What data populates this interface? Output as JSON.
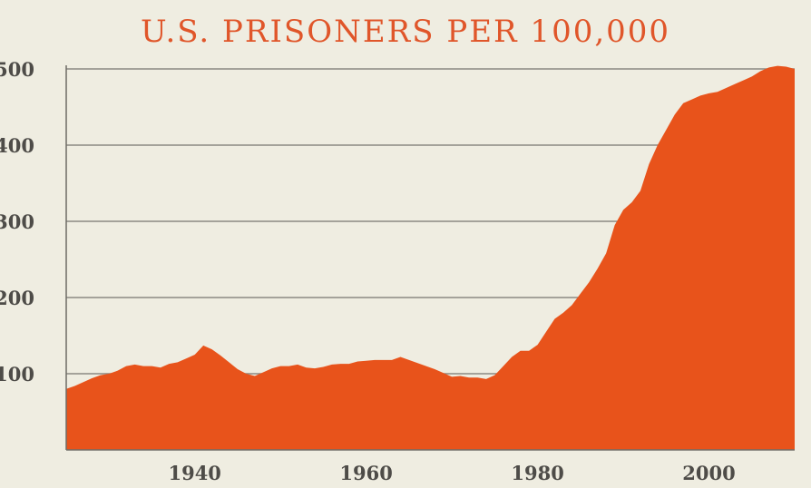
{
  "colors": {
    "background": "#efede1",
    "area_fill": "#e8531b",
    "title": "#e0562a",
    "gridline": "#8c8a83",
    "axis": "#6f6d66",
    "tick_label": "#4e4c48"
  },
  "chart_data": {
    "type": "area",
    "title": "U.S. PRISONERS PER 100,000",
    "xlabel": "",
    "ylabel": "",
    "xlim": [
      1925,
      2010
    ],
    "ylim": [
      0,
      500
    ],
    "grid": true,
    "yticks": [
      100,
      200,
      300,
      400,
      500
    ],
    "ytick_labels": [
      "100",
      "200",
      "300",
      "400",
      "500"
    ],
    "xticks": [
      1940,
      1960,
      1980,
      2000
    ],
    "xtick_labels": [
      "1940",
      "1960",
      "1980",
      "2000"
    ],
    "series": [
      {
        "name": "Prisoners per 100,000",
        "x": [
          1925,
          1926,
          1927,
          1928,
          1929,
          1930,
          1931,
          1932,
          1933,
          1934,
          1935,
          1936,
          1937,
          1938,
          1939,
          1940,
          1941,
          1942,
          1943,
          1944,
          1945,
          1946,
          1947,
          1948,
          1949,
          1950,
          1951,
          1952,
          1953,
          1954,
          1955,
          1956,
          1957,
          1958,
          1959,
          1960,
          1961,
          1962,
          1963,
          1964,
          1965,
          1966,
          1967,
          1968,
          1969,
          1970,
          1971,
          1972,
          1973,
          1974,
          1975,
          1976,
          1977,
          1978,
          1979,
          1980,
          1981,
          1982,
          1983,
          1984,
          1985,
          1986,
          1987,
          1988,
          1989,
          1990,
          1991,
          1992,
          1993,
          1994,
          1995,
          1996,
          1997,
          1998,
          1999,
          2000,
          2001,
          2002,
          2003,
          2004,
          2005,
          2006,
          2007,
          2008,
          2009,
          2010
        ],
        "values": [
          80,
          84,
          89,
          94,
          98,
          100,
          104,
          110,
          112,
          110,
          110,
          108,
          113,
          115,
          120,
          125,
          137,
          132,
          124,
          115,
          106,
          100,
          97,
          102,
          107,
          110,
          110,
          112,
          108,
          107,
          109,
          112,
          113,
          113,
          116,
          117,
          118,
          118,
          118,
          122,
          118,
          114,
          110,
          106,
          101,
          96,
          97,
          95,
          95,
          93,
          98,
          110,
          122,
          130,
          130,
          138,
          155,
          172,
          180,
          190,
          205,
          220,
          238,
          258,
          295,
          315,
          325,
          340,
          375,
          400,
          420,
          440,
          455,
          460,
          465,
          468,
          470,
          475,
          480,
          485,
          490,
          497,
          502,
          504,
          503,
          500
        ]
      }
    ]
  }
}
